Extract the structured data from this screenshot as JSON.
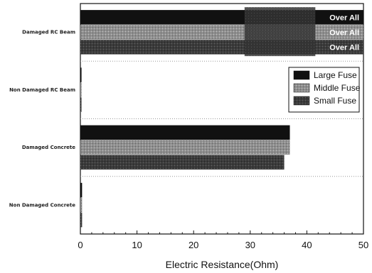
{
  "chart_data": {
    "type": "bar",
    "orientation": "horizontal",
    "categories": [
      "Damaged RC Beam",
      "Non Damaged RC Beam",
      "Damaged Concrete",
      "Non Damaged Concrete"
    ],
    "series": [
      {
        "name": "Large Fuse",
        "values": [
          50,
          0.2,
          37,
          0.3
        ],
        "color": "#111111"
      },
      {
        "name": "Middle Fuse",
        "values": [
          50,
          0.2,
          37,
          0.3
        ],
        "color": "#8a8a8a"
      },
      {
        "name": "Small Fuse",
        "values": [
          50,
          0.2,
          36,
          0.3
        ],
        "color": "#3a3a3a"
      }
    ],
    "bar_labels": [
      "Over All",
      "Over All",
      "Over All"
    ],
    "xlabel": "Electric Resistance(Ohm)",
    "ylabel": "",
    "xlim": [
      0,
      50
    ],
    "xticks": [
      "0",
      "10",
      "20",
      "30",
      "40",
      "50"
    ],
    "grid": "dotted separators between categories",
    "legend_position": "right"
  }
}
